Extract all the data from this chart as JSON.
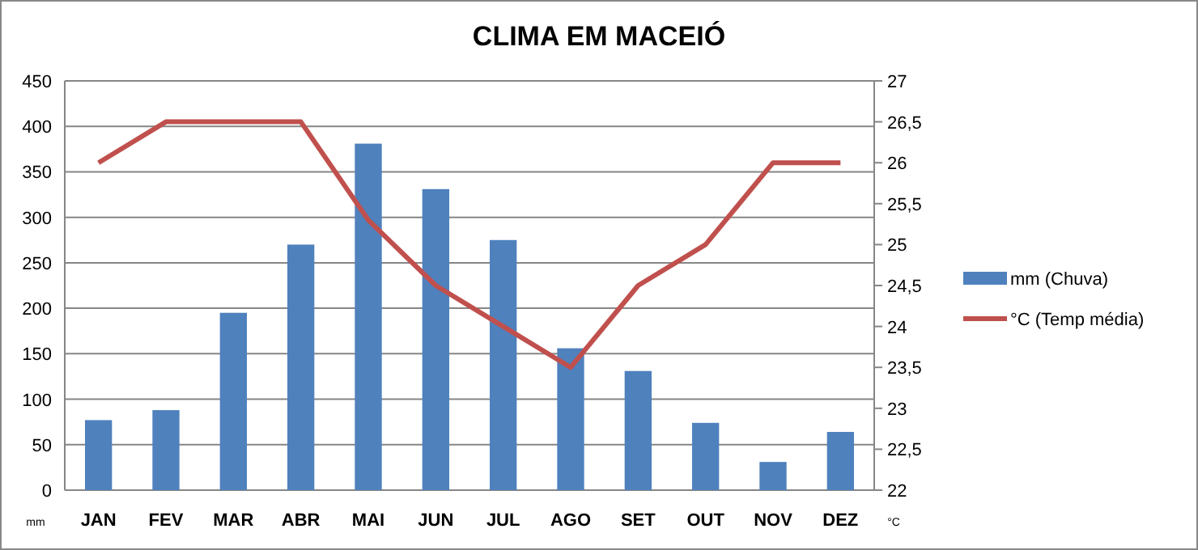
{
  "chart_data": {
    "type": "bar",
    "title": "CLIMA EM MACEIÓ",
    "ylabel": "mm",
    "y2label": "°C",
    "categories": [
      "JAN",
      "FEV",
      "MAR",
      "ABR",
      "MAI",
      "JUN",
      "JUL",
      "AGO",
      "SET",
      "OUT",
      "NOV",
      "DEZ"
    ],
    "series": [
      {
        "name": "mm (Chuva)",
        "color": "#4f81bd",
        "values": [
          77,
          88,
          195,
          270,
          381,
          331,
          275,
          156,
          131,
          74,
          31,
          64
        ]
      },
      {
        "name": "°C (Temp média)",
        "type": "line",
        "axis": "y2",
        "color": "#c0504d",
        "values": [
          26,
          26.5,
          26.5,
          26.5,
          25.3,
          24.5,
          24,
          23.5,
          24.5,
          25,
          26,
          26
        ]
      }
    ],
    "ylim": [
      0,
      450
    ],
    "yticks": [
      0,
      50,
      100,
      150,
      200,
      250,
      300,
      350,
      400,
      450
    ],
    "y2lim": [
      22,
      27
    ],
    "y2ticks": [
      {
        "value": 22,
        "label": "22"
      },
      {
        "value": 22.5,
        "label": "22,5"
      },
      {
        "value": 23,
        "label": "23"
      },
      {
        "value": 23.5,
        "label": "23,5"
      },
      {
        "value": 24,
        "label": "24"
      },
      {
        "value": 24.5,
        "label": "24,5"
      },
      {
        "value": 25,
        "label": "25"
      },
      {
        "value": 25.5,
        "label": "25,5"
      },
      {
        "value": 26,
        "label": "26"
      },
      {
        "value": 26.5,
        "label": "26,5"
      },
      {
        "value": 27,
        "label": "27"
      }
    ],
    "grid": "y",
    "legend": "right",
    "marker": "none",
    "line_style": "solid"
  }
}
